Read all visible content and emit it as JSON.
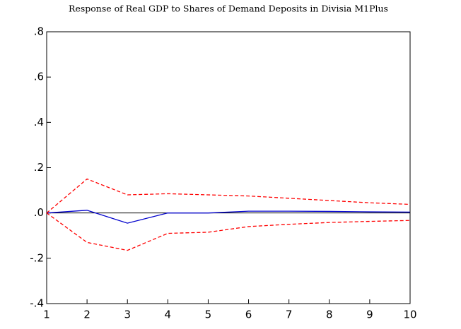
{
  "chart_data": {
    "type": "line",
    "title": "Response of Real GDP to Shares of Demand Deposits in Divisia M1Plus",
    "x": [
      1,
      2,
      3,
      4,
      5,
      6,
      7,
      8,
      9,
      10
    ],
    "series": [
      {
        "color": "#0000cc",
        "dashed": false,
        "values": [
          0,
          0.012,
          -0.045,
          0,
          0,
          0.008,
          0.008,
          0.007,
          0.005,
          0.004
        ]
      },
      {
        "color": "#ff0000",
        "dashed": true,
        "values": [
          0,
          0.15,
          0.08,
          0.085,
          0.08,
          0.075,
          0.065,
          0.055,
          0.045,
          0.038
        ]
      },
      {
        "color": "#ff0000",
        "dashed": true,
        "values": [
          0,
          -0.13,
          -0.165,
          -0.09,
          -0.085,
          -0.06,
          -0.05,
          -0.042,
          -0.037,
          -0.033
        ]
      }
    ],
    "xlim": [
      1,
      10
    ],
    "xticks": [
      1,
      2,
      3,
      4,
      5,
      6,
      7,
      8,
      9,
      10
    ],
    "ylim": [
      -0.4,
      0.8
    ],
    "yticks": [
      {
        "value": -0.4,
        "label": "-.4"
      },
      {
        "value": -0.2,
        "label": "-.2"
      },
      {
        "value": 0,
        "label": ".0"
      },
      {
        "value": 0.2,
        "label": ".2"
      },
      {
        "value": 0.4,
        "label": ".4"
      },
      {
        "value": 0.6,
        "label": ".6"
      },
      {
        "value": 0.8,
        "label": ".8"
      }
    ],
    "zero_line": true
  }
}
